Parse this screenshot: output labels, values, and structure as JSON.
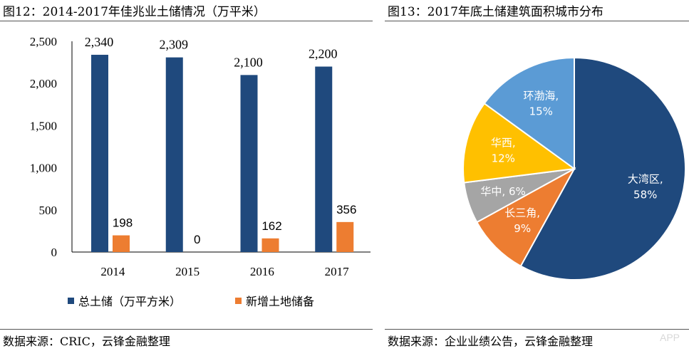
{
  "left": {
    "title": "图12：2014-2017年佳兆业土储情况（万平米）",
    "source": "数据来源：CRIC，云锋金融整理"
  },
  "right": {
    "title": "图13：2017年底土储建筑面积城市分布",
    "source": "数据来源：企业业绩公告，云锋金融整理"
  },
  "watermark": "APP",
  "chart_data": [
    {
      "type": "bar",
      "categories": [
        "2014",
        "2015",
        "2016",
        "2017"
      ],
      "series": [
        {
          "name": "总土储（万平方米）",
          "values": [
            2340,
            2309,
            2100,
            2200
          ],
          "color": "#1f497d",
          "labels": [
            "2,340",
            "2,309",
            "2,100",
            "2,200"
          ]
        },
        {
          "name": "新增土地储备",
          "values": [
            198,
            0,
            162,
            356
          ],
          "color": "#ed7d31",
          "labels": [
            "198",
            "0",
            "162",
            "356"
          ]
        }
      ],
      "yticks": [
        "0",
        "500",
        "1,000",
        "1,500",
        "2,000",
        "2,500"
      ],
      "ylim": [
        0,
        2500
      ],
      "legend": "bottom"
    },
    {
      "type": "pie",
      "slices": [
        {
          "name": "大湾区,",
          "pct": "58%",
          "value": 58,
          "color": "#1f497d"
        },
        {
          "name": "长三角,",
          "pct": "9%",
          "value": 9,
          "color": "#ed7d31"
        },
        {
          "name": "华中,",
          "pct": "6%",
          "value": 6,
          "color": "#a5a5a5"
        },
        {
          "name": "华西,",
          "pct": "12%",
          "value": 12,
          "color": "#ffc000"
        },
        {
          "name": "环渤海,",
          "pct": "15%",
          "value": 15,
          "color": "#5b9bd5"
        }
      ]
    }
  ]
}
